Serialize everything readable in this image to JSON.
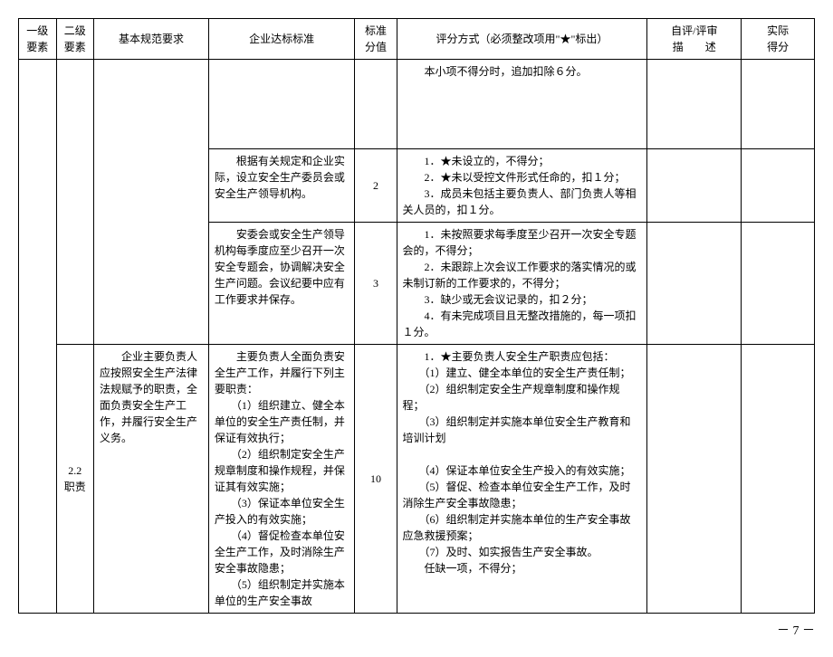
{
  "header": {
    "c1": "一级要素",
    "c2": "二级要素",
    "c3": "基本规范要求",
    "c4": "企业达标标准",
    "c5": "标准分值",
    "c6": "评分方式（必须整改项用\"★\"标出）",
    "c7": "自评/评审\n描　　述",
    "c8": "实际\n得分"
  },
  "rows": [
    {
      "c4": "",
      "c5": "",
      "c6": "　　本小项不得分时，追加扣除６分。"
    },
    {
      "c4": "　　根据有关规定和企业实际，设立安全生产委员会或安全生产领导机构。",
      "c5": "2",
      "c6": "　　1．★未设立的，不得分；\n　　2．★未以受控文件形式任命的，扣１分；\n　　3．成员未包括主要负责人、部门负责人等相关人员的，扣１分。"
    },
    {
      "c4": "　　安委会或安全生产领导机构每季度应至少召开一次安全专题会，协调解决安全生产问题。会议纪要中应有工作要求并保存。",
      "c5": "3",
      "c6": "　　1．未按照要求每季度至少召开一次安全专题会的，不得分；\n　　2．未跟踪上次会议工作要求的落实情况的或未制订新的工作要求的，不得分；\n　　3．缺少或无会议记录的，扣２分；\n　　4．有未完成项目且无整改措施的，每一项扣１分。"
    },
    {
      "c2": "2.2\n职责",
      "c3": "　　企业主要负责人应按照安全生产法律法规赋予的职责，全面负责安全生产工作，并履行安全生产义务。",
      "c4": "　　主要负责人全面负责安全生产工作，并履行下列主要职责：\n　　（1）组织建立、健全本单位的安全生产责任制，并保证有效执行；\n　　（2）组织制定安全生产规章制度和操作规程，并保证其有效实施；\n　　（3）保证本单位安全生产投入的有效实施；\n　　（4）督促检查本单位安全生产工作，及时消除生产安全事故隐患；\n　　（5）组织制定并实施本单位的生产安全事故",
      "c5": "10",
      "c6": "　　1．★主要负责人安全生产职责应包括：\n　　（1）建立、健全本单位的安全生产责任制；\n　　（2）组织制定安全生产规章制度和操作规程；\n　　（3）组织制定并实施本单位安全生产教育和培训计划\n\n　　（4）保证本单位安全生产投入的有效实施；\n　　（5）督促、检查本单位安全生产工作，及时消除生产安全事故隐患；\n　　（6）组织制定并实施本单位的生产安全事故应急救援预案；\n　　（7）及时、如实报告生产安全事故。\n　　任缺一项，不得分；"
    }
  ],
  "page_number": "－ 7 －"
}
